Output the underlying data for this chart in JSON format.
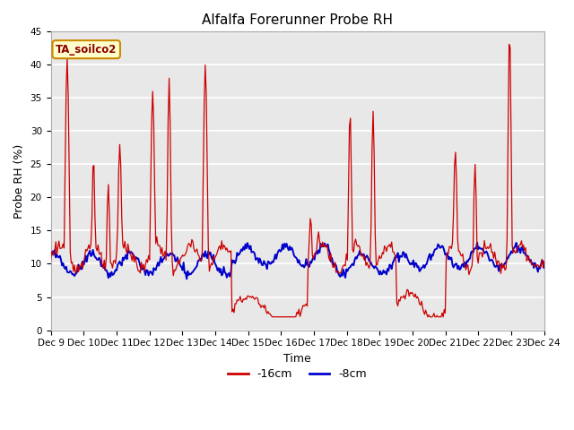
{
  "title": "Alfalfa Forerunner Probe RH",
  "ylabel": "Probe RH (%)",
  "xlabel": "Time",
  "ylim": [
    0,
    45
  ],
  "yticks": [
    0,
    5,
    10,
    15,
    20,
    25,
    30,
    35,
    40,
    45
  ],
  "xtick_labels": [
    "Dec 9",
    "Dec 10",
    "Dec 11",
    "Dec 12",
    "Dec 13",
    "Dec 14",
    "Dec 15",
    "Dec 16",
    "Dec 17",
    "Dec 18",
    "Dec 19",
    "Dec 20",
    "Dec 21",
    "Dec 22",
    "Dec 23",
    "Dec 24"
  ],
  "annotation_text": "TA_soilco2",
  "annotation_bg": "#ffffcc",
  "annotation_border": "#cc8800",
  "color_red": "#cc0000",
  "color_blue": "#0000cc",
  "legend_labels": [
    "-16cm",
    "-8cm"
  ],
  "plot_bg": "#e8e8e8",
  "fig_bg": "#ffffff",
  "title_fontsize": 11,
  "axis_fontsize": 9,
  "tick_fontsize": 7.5
}
